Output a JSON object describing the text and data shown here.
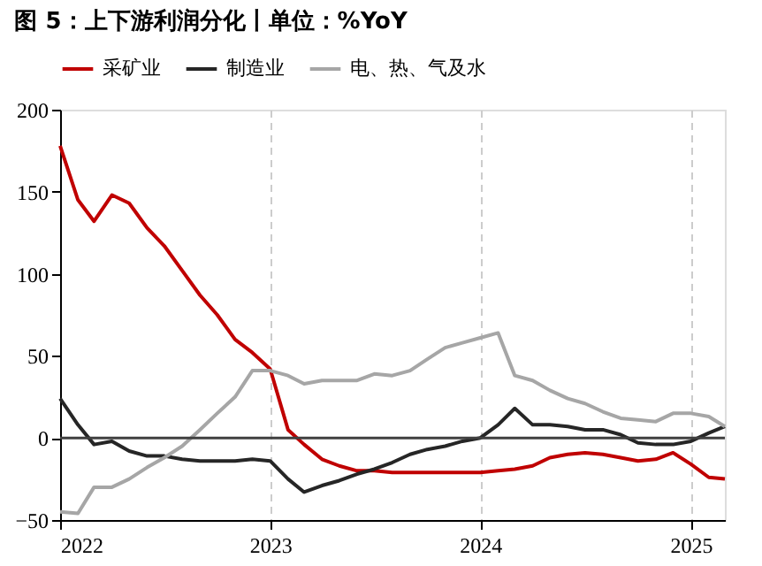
{
  "chart_data": {
    "type": "line",
    "title": "图 5：上下游利润分化丨单位：%YoY",
    "x": [
      "2022-01",
      "2022-02",
      "2022-03",
      "2022-04",
      "2022-05",
      "2022-06",
      "2022-07",
      "2022-08",
      "2022-09",
      "2022-10",
      "2022-11",
      "2022-12",
      "2023-01",
      "2023-02",
      "2023-03",
      "2023-04",
      "2023-05",
      "2023-06",
      "2023-07",
      "2023-08",
      "2023-09",
      "2023-10",
      "2023-11",
      "2023-12",
      "2024-01",
      "2024-02",
      "2024-03",
      "2024-04",
      "2024-05",
      "2024-06",
      "2024-07",
      "2024-08",
      "2024-09",
      "2024-10",
      "2024-11",
      "2024-12",
      "2025-01",
      "2025-02",
      "2025-03"
    ],
    "series": [
      {
        "name": "采矿业",
        "color": "#c00000",
        "values": [
          178,
          145,
          132,
          148,
          143,
          128,
          117,
          102,
          87,
          75,
          60,
          52,
          42,
          5,
          -4,
          -13,
          -17,
          -20,
          -20,
          -21,
          -21,
          -21,
          -21,
          -21,
          -21,
          -20,
          -19,
          -17,
          -12,
          -10,
          -9,
          -10,
          -12,
          -14,
          -13,
          -9,
          -16,
          -24,
          -25
        ]
      },
      {
        "name": "制造业",
        "color": "#262626",
        "values": [
          24,
          8,
          -4,
          -2,
          -8,
          -11,
          -11,
          -13,
          -14,
          -14,
          -14,
          -13,
          -14,
          -25,
          -33,
          -29,
          -26,
          -22,
          -19,
          -15,
          -10,
          -7,
          -5,
          -2,
          0,
          8,
          18,
          8,
          8,
          7,
          5,
          5,
          2,
          -3,
          -4,
          -4,
          -2,
          3,
          7
        ]
      },
      {
        "name": "电、热、气及水",
        "color": "#a6a6a6",
        "values": [
          -45,
          -46,
          -30,
          -30,
          -25,
          -18,
          -12,
          -5,
          5,
          15,
          25,
          41,
          41,
          38,
          33,
          35,
          35,
          35,
          39,
          38,
          41,
          48,
          55,
          58,
          61,
          64,
          38,
          35,
          29,
          24,
          21,
          16,
          12,
          11,
          10,
          15,
          15,
          13,
          7
        ]
      }
    ],
    "xlim": [
      "2022-01",
      "2025-03"
    ],
    "xticks": [
      "2022",
      "2023",
      "2024",
      "2025"
    ],
    "ylim": [
      -50,
      200
    ],
    "yticks": [
      -50,
      0,
      50,
      100,
      150,
      200
    ],
    "ref_lines": [
      {
        "axis": "y",
        "value": 0,
        "color": "#404040"
      }
    ],
    "grid": "x",
    "legend": "top"
  }
}
